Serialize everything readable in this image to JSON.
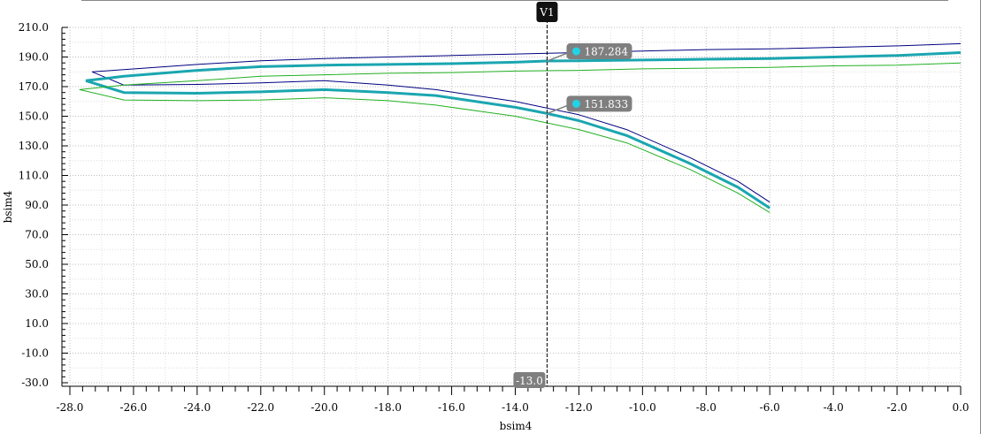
{
  "chart_data": {
    "type": "line",
    "xlabel": "bsim4",
    "ylabel": "bsim4",
    "xlim": [
      -28.0,
      0.0
    ],
    "ylim": [
      -30.0,
      210.0
    ],
    "x_ticks": [
      "-28.0",
      "-26.0",
      "-24.0",
      "-22.0",
      "-20.0",
      "-18.0",
      "-16.0",
      "-14.0",
      "-12.0",
      "-10.0",
      "-8.0",
      "-6.0",
      "-4.0",
      "-2.0",
      "0.0"
    ],
    "y_ticks": [
      "210.0",
      "190.0",
      "170.0",
      "150.0",
      "130.0",
      "110.0",
      "90.0",
      "70.0",
      "50.0",
      "30.0",
      "10.0",
      "-10.0",
      "-30.0"
    ],
    "grid": true,
    "marker": {
      "label": "V1",
      "x": -13.0,
      "x_label": "-13.0"
    },
    "readouts": [
      {
        "label": "187.284",
        "x": -13.0,
        "y": 187.284
      },
      {
        "label": "151.833",
        "x": -13.0,
        "y": 151.833
      }
    ],
    "series": [
      {
        "color": "#000080",
        "width": 1,
        "x": [
          -27.3,
          -26.3,
          -24.0,
          -22.0,
          -20.0,
          -18.0,
          -16.0,
          -14.0,
          -12.0,
          -10.0,
          -8.0,
          -6.0,
          -4.0,
          -2.0,
          0.0
        ],
        "y": [
          180.0,
          181.5,
          185.0,
          187.5,
          189.0,
          190.0,
          191.0,
          192.0,
          193.0,
          194.0,
          195.0,
          195.5,
          196.5,
          197.5,
          199.0
        ]
      },
      {
        "color": "#000080",
        "width": 1,
        "x": [
          -27.3,
          -26.3,
          -24.0,
          -22.0,
          -20.0,
          -18.0,
          -16.5,
          -14.0,
          -12.0,
          -10.5,
          -8.5,
          -7.0,
          -6.0
        ],
        "y": [
          180.0,
          171.0,
          171.5,
          172.5,
          174.0,
          171.0,
          168.0,
          160.0,
          151.0,
          141.0,
          122.0,
          106.0,
          92.0
        ]
      },
      {
        "color": "#1aa6b0",
        "width": 3,
        "x": [
          -27.5,
          -26.3,
          -24.0,
          -22.0,
          -20.0,
          -18.0,
          -16.0,
          -14.0,
          -13.0,
          -12.0,
          -10.0,
          -8.0,
          -6.0,
          -4.0,
          -2.0,
          0.0
        ],
        "y": [
          174.0,
          177.0,
          181.0,
          183.5,
          184.5,
          185.0,
          185.5,
          186.5,
          187.284,
          187.5,
          188.0,
          188.5,
          189.0,
          190.0,
          191.0,
          193.0
        ]
      },
      {
        "color": "#1aa6b0",
        "width": 3,
        "x": [
          -27.5,
          -26.3,
          -24.0,
          -22.0,
          -20.0,
          -18.0,
          -16.5,
          -14.0,
          -13.0,
          -12.0,
          -10.5,
          -8.5,
          -7.0,
          -6.0
        ],
        "y": [
          174.0,
          166.0,
          165.5,
          166.5,
          168.0,
          166.0,
          164.0,
          156.0,
          151.833,
          147.0,
          137.0,
          118.0,
          102.0,
          88.0
        ]
      },
      {
        "color": "#22b022",
        "width": 1,
        "x": [
          -27.7,
          -26.3,
          -24.0,
          -22.0,
          -20.0,
          -18.0,
          -16.0,
          -14.0,
          -12.0,
          -10.0,
          -8.0,
          -6.0,
          -4.0,
          -2.0,
          0.0
        ],
        "y": [
          168.0,
          171.0,
          174.0,
          177.0,
          178.0,
          179.0,
          179.5,
          180.5,
          181.0,
          182.0,
          182.5,
          183.0,
          184.0,
          184.5,
          186.0
        ]
      },
      {
        "color": "#22b022",
        "width": 1,
        "x": [
          -27.7,
          -26.3,
          -24.0,
          -22.0,
          -20.0,
          -18.0,
          -16.5,
          -14.0,
          -12.0,
          -10.5,
          -8.5,
          -7.0,
          -6.0
        ],
        "y": [
          168.0,
          161.0,
          160.5,
          161.0,
          162.5,
          160.5,
          157.5,
          150.0,
          141.0,
          132.0,
          114.0,
          98.0,
          85.0
        ]
      }
    ]
  }
}
